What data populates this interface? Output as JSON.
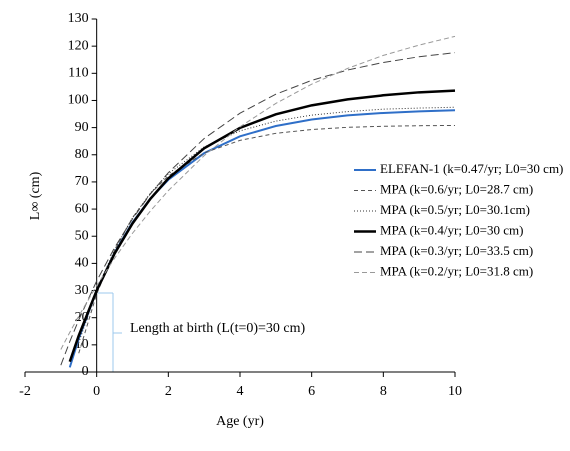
{
  "chart_data": {
    "type": "line",
    "xlabel": "Age (yr)",
    "ylabel": "L∞ (cm)",
    "x": [
      -1,
      -0.75,
      -0.5,
      0,
      0.5,
      1,
      1.5,
      2,
      3,
      4,
      5,
      6,
      7,
      8,
      9,
      10
    ],
    "xlim": [
      -2,
      10
    ],
    "xticks": [
      -2,
      0,
      2,
      4,
      6,
      8,
      10
    ],
    "ylim": [
      0,
      130
    ],
    "yticks": [
      0,
      10,
      20,
      30,
      40,
      50,
      60,
      70,
      80,
      90,
      100,
      110,
      120,
      130
    ],
    "annotation": "Length at birth (L(t=0)=30 cm)",
    "series": [
      {
        "name": "ELEFAN-1 (k=0.47/yr; L0=30 cm)",
        "color": "#2f6fc8",
        "dash": "none",
        "width": 2,
        "values": [
          null,
          1.7,
          12.3,
          30,
          44,
          55.1,
          63.9,
          70.8,
          80.6,
          86.8,
          90.6,
          93.0,
          94.5,
          95.4,
          96.0,
          96.4
        ]
      },
      {
        "name": "MPA (k=0.6/yr; L0=28.7 cm)",
        "color": "#555555",
        "dash": "4 3",
        "width": 1,
        "values": [
          null,
          null,
          6.9,
          28.7,
          44.8,
          56.8,
          65.7,
          72.2,
          80.7,
          85.3,
          87.9,
          89.3,
          90.1,
          90.5,
          90.7,
          90.8
        ]
      },
      {
        "name": "MPA (k=0.5/yr; L0=30.1cm)",
        "color": "#333333",
        "dash": "1 2",
        "width": 1,
        "values": [
          null,
          null,
          10.8,
          30.1,
          45.1,
          56.8,
          65.9,
          73,
          82.9,
          88.8,
          92.4,
          94.6,
          95.9,
          96.8,
          97.2,
          97.5
        ]
      },
      {
        "name": "MPA (k=0.4/yr; L0=30 cm)",
        "color": "#000000",
        "dash": "none",
        "width": 2.5,
        "values": [
          null,
          3.8,
          13.4,
          30,
          43.6,
          54.7,
          63.8,
          71.3,
          82.4,
          89.9,
          94.9,
          98.2,
          100.4,
          101.9,
          103.0,
          103.6
        ]
      },
      {
        "name": "MPA (k=0.3/yr; L0=33.5 cm)",
        "color": "#444444",
        "dash": "8 4",
        "width": 1,
        "values": [
          2.5,
          11.2,
          19.2,
          33.5,
          45.8,
          56.4,
          65.6,
          73.4,
          86,
          95.3,
          102.3,
          107.4,
          111.2,
          114.0,
          116.1,
          117.6
        ]
      },
      {
        "name": "MPA (k=0.2/yr; L0=31.8 cm)",
        "color": "#999999",
        "dash": "5 3",
        "width": 1,
        "values": [
          8.3,
          14.6,
          20.6,
          31.8,
          41.9,
          51.1,
          59.3,
          66.8,
          79.7,
          90.3,
          98.9,
          106.0,
          111.8,
          116.6,
          120.4,
          123.6
        ]
      }
    ]
  }
}
